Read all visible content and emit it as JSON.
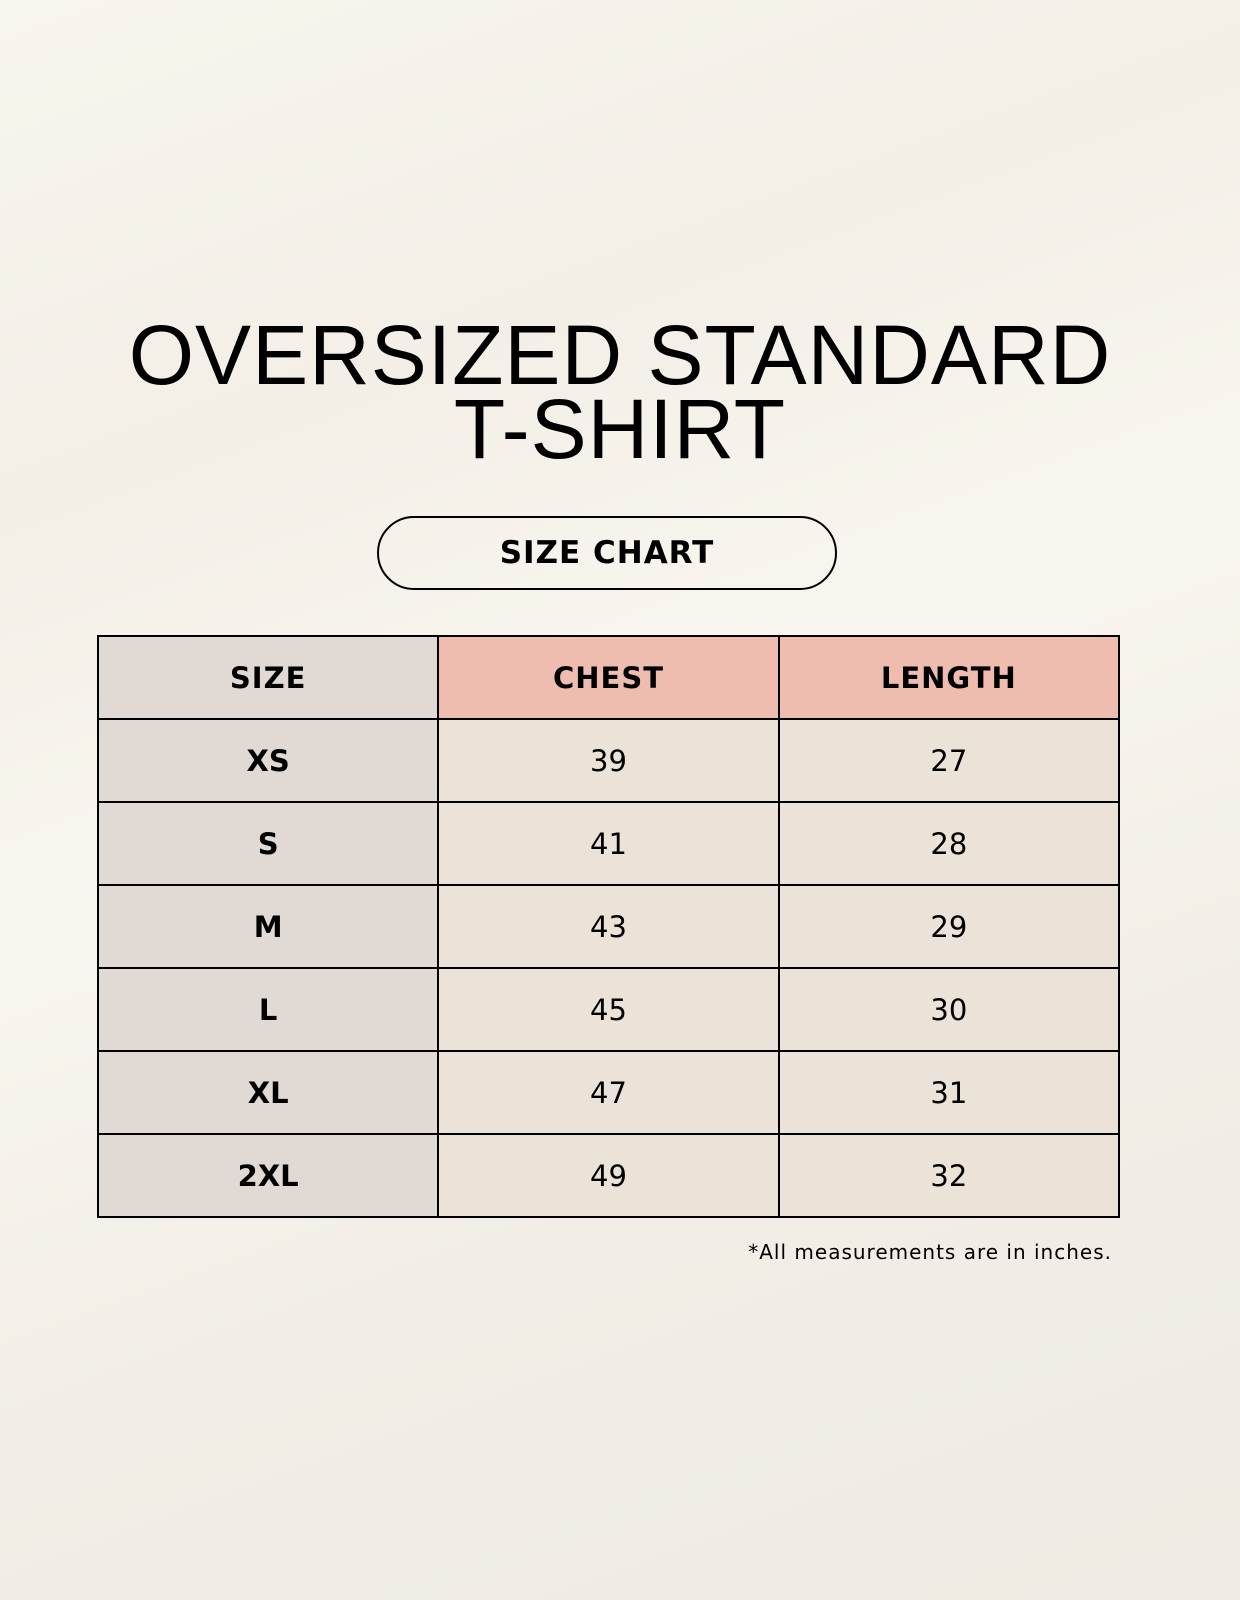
{
  "title_line1": "OVERSIZED STANDARD",
  "title_line2": "T-SHIRT",
  "badge": "SIZE CHART",
  "table": {
    "headers": [
      "SIZE",
      "CHEST",
      "LENGTH"
    ],
    "rows": [
      [
        "XS",
        "39",
        "27"
      ],
      [
        "S",
        "41",
        "28"
      ],
      [
        "M",
        "43",
        "29"
      ],
      [
        "L",
        "45",
        "30"
      ],
      [
        "XL",
        "47",
        "31"
      ],
      [
        "2XL",
        "49",
        "32"
      ]
    ]
  },
  "note": "*All measurements are in inches.",
  "colors": {
    "size_column": "#e0d9d4",
    "header_accent": "#eebdb0",
    "cells": "#ebe3d8"
  }
}
